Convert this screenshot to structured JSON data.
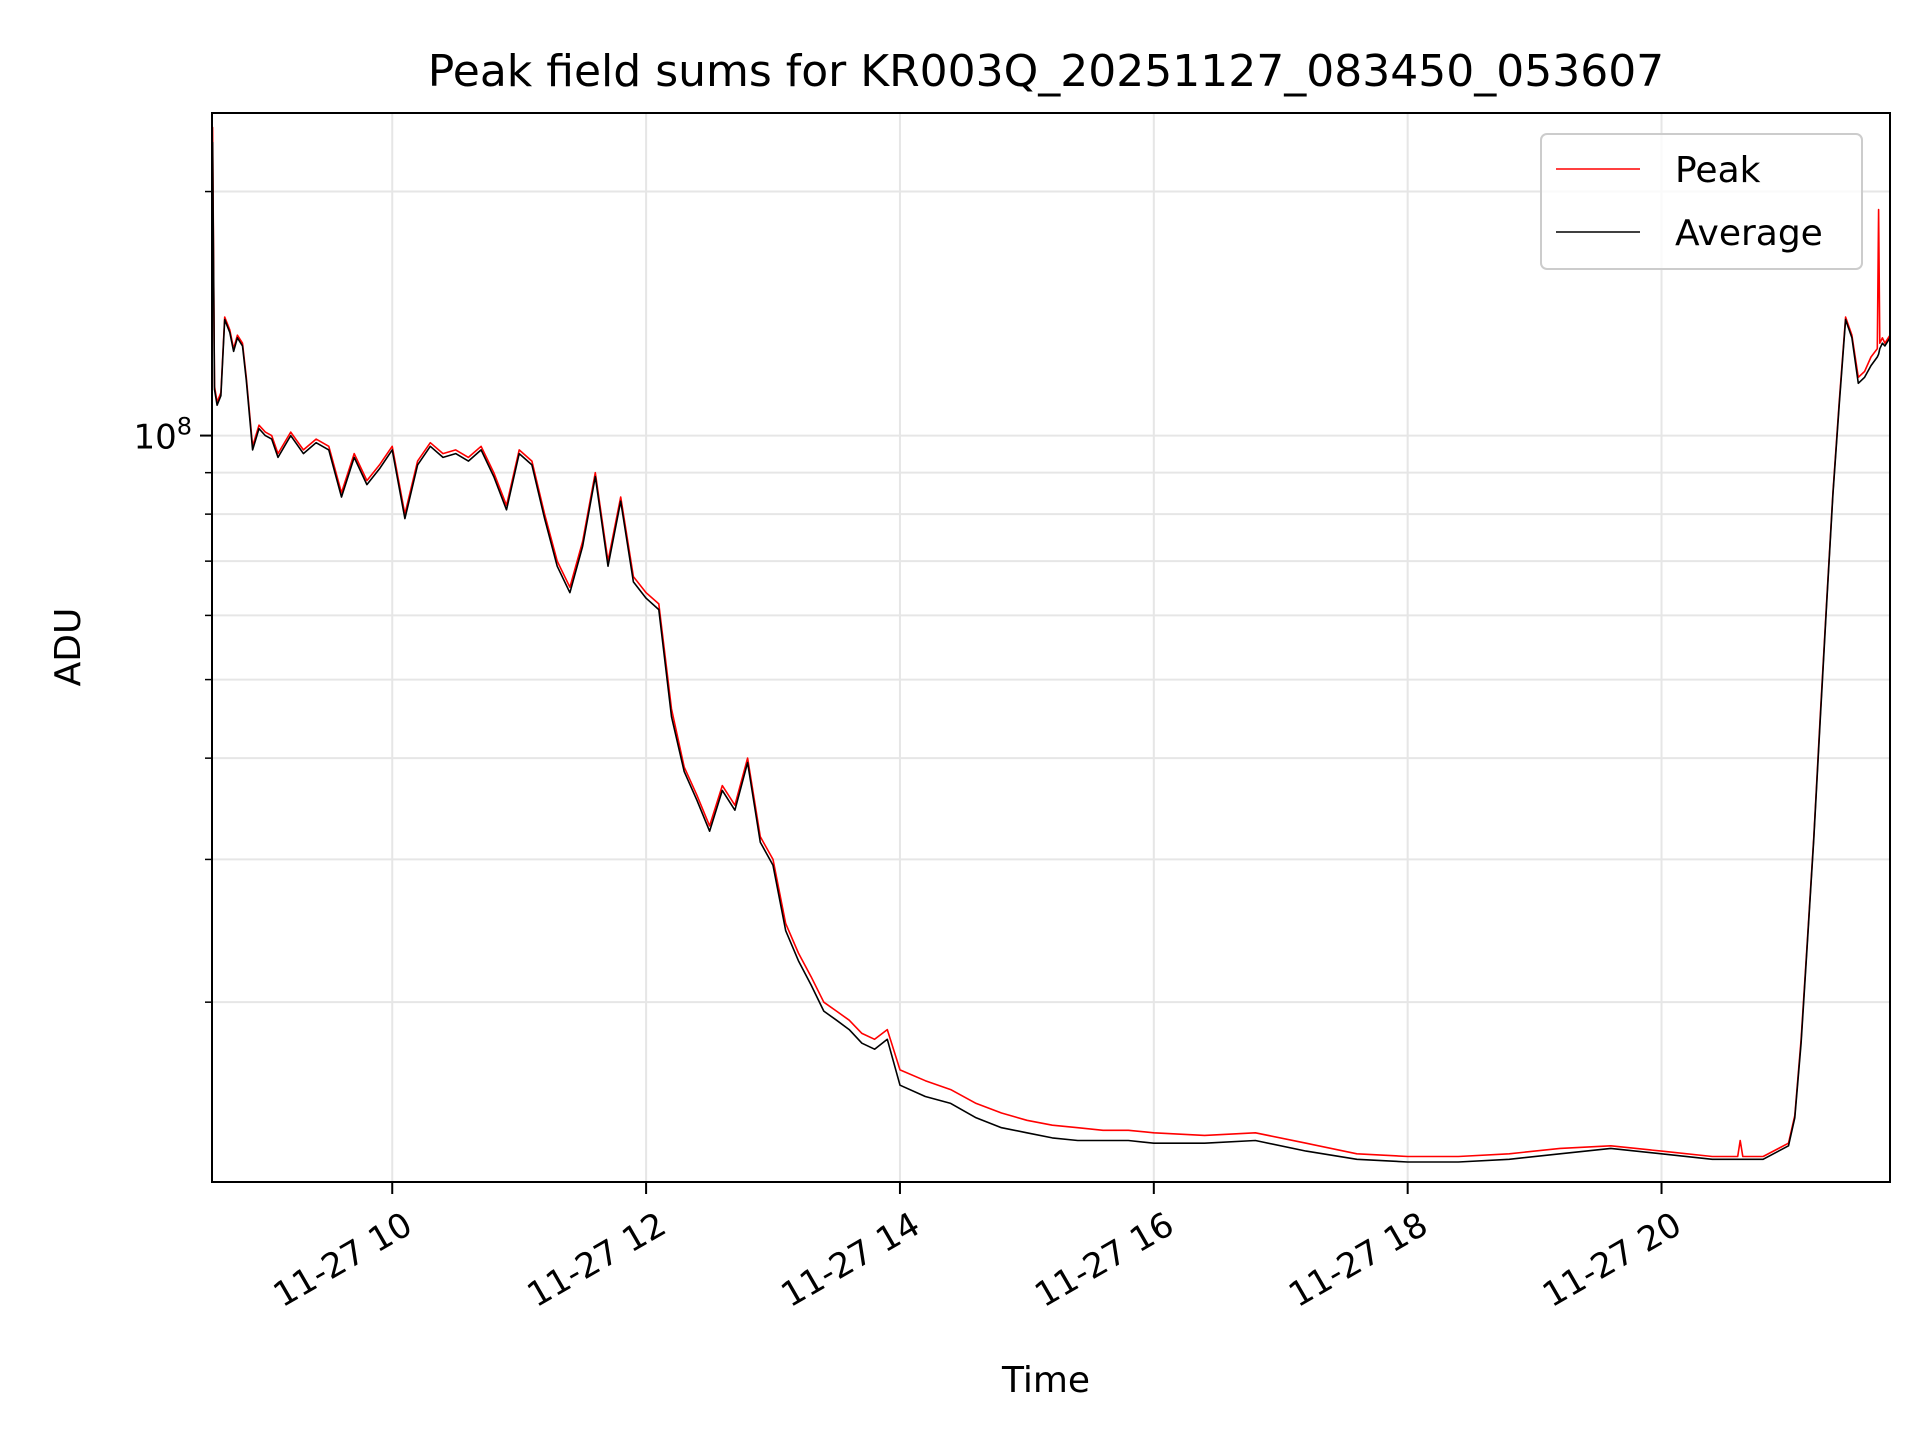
{
  "chart_data": {
    "type": "line",
    "title": "Peak field sums for KR003Q_20251127_083450_053607",
    "xlabel": "Time",
    "ylabel": "ADU",
    "yscale": "log",
    "grid": true,
    "legend_position": "top-right",
    "xlim": [
      8.58,
      21.8
    ],
    "ylim": [
      12000000.0,
      250000000.0
    ],
    "x_ticks": [
      {
        "value": 10,
        "label": "11-27 10"
      },
      {
        "value": 12,
        "label": "11-27 12"
      },
      {
        "value": 14,
        "label": "11-27 14"
      },
      {
        "value": 16,
        "label": "11-27 16"
      },
      {
        "value": 18,
        "label": "11-27 18"
      },
      {
        "value": 20,
        "label": "11-27 20"
      }
    ],
    "y_major_ticks": [
      {
        "value": 100000000,
        "base": "10",
        "exp": "8"
      }
    ],
    "y_minor_ticks": [
      20000000,
      30000000,
      40000000,
      50000000,
      60000000,
      70000000,
      80000000,
      90000000,
      200000000
    ],
    "series": [
      {
        "name": "Peak",
        "color": "#ff0000",
        "x": [
          8.58,
          8.585,
          8.6,
          8.62,
          8.65,
          8.68,
          8.72,
          8.75,
          8.78,
          8.82,
          8.85,
          8.9,
          8.95,
          9.0,
          9.05,
          9.1,
          9.2,
          9.3,
          9.4,
          9.5,
          9.6,
          9.7,
          9.8,
          9.9,
          10.0,
          10.1,
          10.2,
          10.3,
          10.4,
          10.5,
          10.6,
          10.7,
          10.8,
          10.9,
          11.0,
          11.1,
          11.2,
          11.3,
          11.4,
          11.5,
          11.6,
          11.7,
          11.8,
          11.9,
          12.0,
          12.1,
          12.2,
          12.3,
          12.4,
          12.5,
          12.6,
          12.7,
          12.8,
          12.9,
          13.0,
          13.1,
          13.2,
          13.3,
          13.4,
          13.5,
          13.6,
          13.7,
          13.8,
          13.9,
          14.0,
          14.2,
          14.4,
          14.6,
          14.8,
          15.0,
          15.2,
          15.4,
          15.6,
          15.8,
          16.0,
          16.4,
          16.8,
          17.2,
          17.6,
          18.0,
          18.4,
          18.8,
          19.2,
          19.6,
          20.0,
          20.4,
          20.6,
          20.62,
          20.64,
          20.8,
          21.0,
          21.05,
          21.1,
          21.15,
          21.2,
          21.25,
          21.3,
          21.35,
          21.4,
          21.45,
          21.5,
          21.55,
          21.6,
          21.65,
          21.7,
          21.71,
          21.72,
          21.74,
          21.76,
          21.8
        ],
        "values": [
          114000000,
          240000000,
          115000000,
          110000000,
          113000000,
          140000000,
          135000000,
          128000000,
          133000000,
          130000000,
          118000000,
          97000000,
          103000000,
          101000000,
          100000000,
          95000000,
          101000000,
          96000000,
          99000000,
          97000000,
          85000000,
          95000000,
          88000000,
          92000000,
          97000000,
          80000000,
          93000000,
          98000000,
          95000000,
          96000000,
          94000000,
          97000000,
          90000000,
          82000000,
          96000000,
          93000000,
          80000000,
          70000000,
          65000000,
          74000000,
          90000000,
          70000000,
          84000000,
          67000000,
          64000000,
          62000000,
          46000000,
          39000000,
          36000000,
          33000000,
          37000000,
          35000000,
          40000000,
          32000000,
          30000000,
          25000000,
          23000000,
          21500000,
          20000000,
          19500000,
          19000000,
          18300000,
          18000000,
          18500000,
          16500000,
          16000000,
          15600000,
          15000000,
          14600000,
          14300000,
          14100000,
          14000000,
          13900000,
          13900000,
          13800000,
          13700000,
          13800000,
          13400000,
          13000000,
          12900000,
          12900000,
          13000000,
          13200000,
          13300000,
          13100000,
          12900000,
          12900000,
          13500000,
          12900000,
          12900000,
          13400000,
          14500000,
          18000000,
          24000000,
          32000000,
          45000000,
          62000000,
          85000000,
          110000000,
          140000000,
          133000000,
          118000000,
          120000000,
          125000000,
          128000000,
          190000000,
          130000000,
          132000000,
          130000000,
          133000000
        ]
      },
      {
        "name": "Average",
        "color": "#000000",
        "x": [
          8.58,
          8.585,
          8.6,
          8.62,
          8.65,
          8.68,
          8.72,
          8.75,
          8.78,
          8.82,
          8.85,
          8.9,
          8.95,
          9.0,
          9.05,
          9.1,
          9.2,
          9.3,
          9.4,
          9.5,
          9.6,
          9.7,
          9.8,
          9.9,
          10.0,
          10.1,
          10.2,
          10.3,
          10.4,
          10.5,
          10.6,
          10.7,
          10.8,
          10.9,
          11.0,
          11.1,
          11.2,
          11.3,
          11.4,
          11.5,
          11.6,
          11.7,
          11.8,
          11.9,
          12.0,
          12.1,
          12.2,
          12.3,
          12.4,
          12.5,
          12.6,
          12.7,
          12.8,
          12.9,
          13.0,
          13.1,
          13.2,
          13.3,
          13.4,
          13.5,
          13.6,
          13.7,
          13.8,
          13.9,
          14.0,
          14.2,
          14.4,
          14.6,
          14.8,
          15.0,
          15.2,
          15.4,
          15.6,
          15.8,
          16.0,
          16.4,
          16.8,
          17.2,
          17.6,
          18.0,
          18.4,
          18.8,
          19.2,
          19.6,
          20.0,
          20.4,
          20.6,
          20.62,
          20.64,
          20.8,
          21.0,
          21.05,
          21.1,
          21.15,
          21.2,
          21.25,
          21.3,
          21.35,
          21.4,
          21.45,
          21.5,
          21.55,
          21.6,
          21.65,
          21.7,
          21.71,
          21.72,
          21.74,
          21.76,
          21.8
        ],
        "values": [
          113000000,
          230000000,
          114000000,
          109000000,
          112000000,
          139000000,
          134000000,
          127000000,
          132000000,
          129000000,
          117000000,
          96000000,
          102000000,
          100000000,
          99000000,
          94000000,
          100000000,
          95000000,
          98000000,
          96000000,
          84000000,
          94000000,
          87000000,
          91000000,
          96000000,
          79000000,
          92000000,
          97000000,
          94000000,
          95000000,
          93000000,
          96000000,
          89000000,
          81000000,
          95000000,
          92000000,
          79000000,
          69000000,
          64000000,
          73000000,
          89000000,
          69000000,
          83000000,
          66000000,
          63000000,
          61000000,
          45000000,
          38500000,
          35500000,
          32500000,
          36500000,
          34500000,
          39500000,
          31500000,
          29500000,
          24500000,
          22500000,
          21000000,
          19500000,
          19000000,
          18500000,
          17800000,
          17500000,
          18000000,
          15800000,
          15300000,
          15000000,
          14400000,
          14000000,
          13800000,
          13600000,
          13500000,
          13500000,
          13500000,
          13400000,
          13400000,
          13500000,
          13100000,
          12800000,
          12700000,
          12700000,
          12800000,
          13000000,
          13200000,
          13000000,
          12800000,
          12800000,
          12800000,
          12800000,
          12800000,
          13300000,
          14400000,
          17800000,
          23800000,
          31800000,
          44500000,
          61500000,
          84500000,
          109000000,
          139000000,
          132000000,
          116000000,
          118000000,
          122000000,
          125000000,
          126000000,
          128000000,
          130000000,
          129000000,
          132000000
        ]
      }
    ]
  }
}
